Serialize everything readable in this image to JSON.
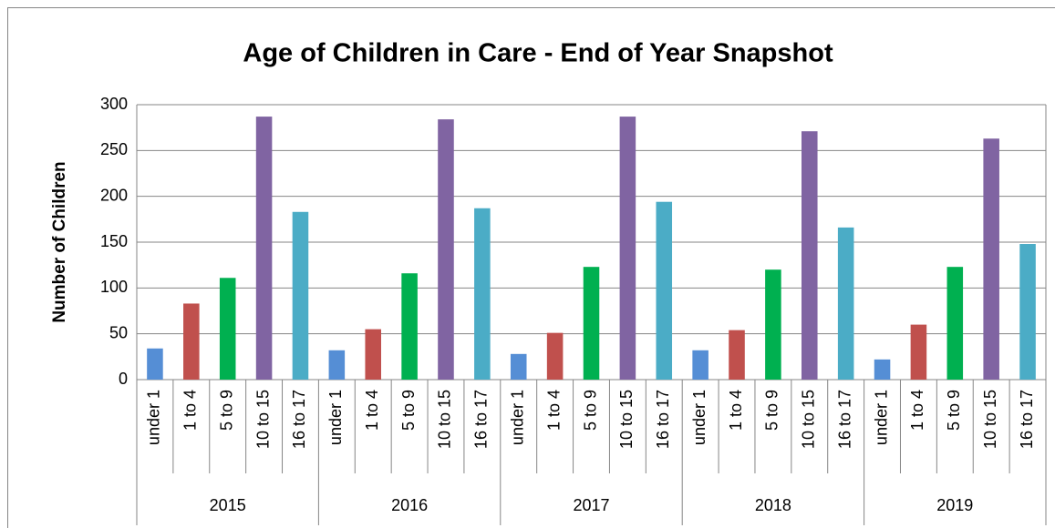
{
  "chart_data": {
    "type": "bar",
    "title": "Age of Children in Care - End of Year Snapshot",
    "y_axis_label": "Number of Children",
    "categories": [
      "2015",
      "2016",
      "2017",
      "2018",
      "2019"
    ],
    "series": [
      {
        "name": "under 1",
        "color": "#558ed5",
        "values": [
          34,
          32,
          28,
          32,
          22
        ]
      },
      {
        "name": "1 to 4",
        "color": "#c0504d",
        "values": [
          83,
          55,
          51,
          54,
          60
        ]
      },
      {
        "name": "5 to 9",
        "color": "#00b050",
        "values": [
          111,
          116,
          123,
          120,
          123
        ]
      },
      {
        "name": "10 to 15",
        "color": "#8064a2",
        "values": [
          287,
          284,
          287,
          271,
          263
        ]
      },
      {
        "name": "16 to 17",
        "color": "#4bacc6",
        "values": [
          183,
          187,
          194,
          166,
          148
        ]
      }
    ],
    "ylim": [
      0,
      300
    ],
    "yticks": [
      0,
      50,
      100,
      150,
      200,
      250,
      300
    ],
    "grid": true
  }
}
